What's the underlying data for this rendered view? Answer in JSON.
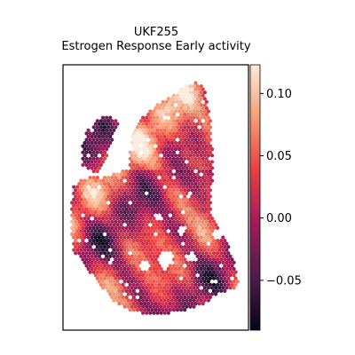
{
  "chart_data": {
    "type": "heatmap",
    "title": "UKF255",
    "subtitle": "Estrogen Response Early activity",
    "xlabel": "",
    "ylabel": "",
    "colormap": "rocket",
    "colorbar": {
      "range": [
        -0.09,
        0.123
      ],
      "ticks": [
        -0.05,
        0.0,
        0.05,
        0.1
      ],
      "tick_labels": [
        "−0.05",
        "0.00",
        "0.05",
        "0.10"
      ]
    },
    "legend": "colorbar-right",
    "grid": false,
    "axis_ticks": false,
    "spots": "hexagonal spatial transcriptomics spots; per-spot activity values not individually readable"
  }
}
